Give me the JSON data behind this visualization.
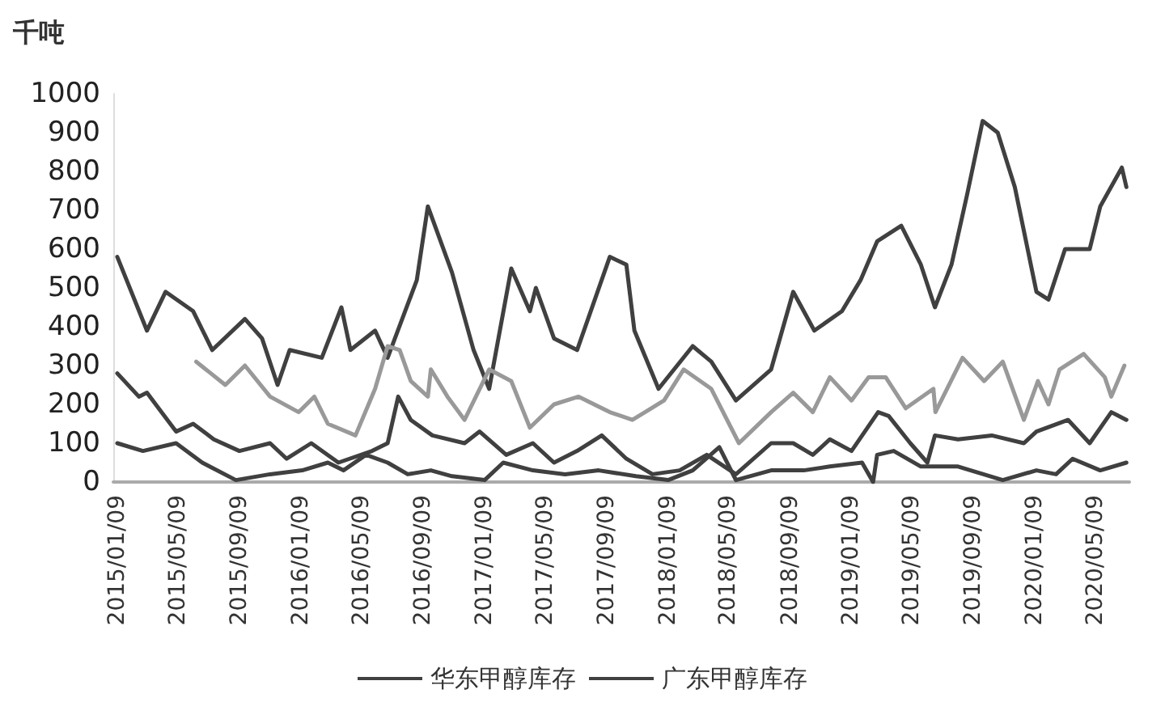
{
  "chart_data": {
    "type": "line",
    "ylabel": "千吨",
    "legend": "bottom",
    "grid": false,
    "marker": "none",
    "line_style": "solid",
    "xlim": [
      "2015-01-01",
      "2020-07-15"
    ],
    "ylim": [
      0,
      1000
    ],
    "yticks": [
      0,
      100,
      200,
      300,
      400,
      500,
      600,
      700,
      800,
      900,
      1000
    ],
    "xticks": [
      {
        "value": "2015-01-09",
        "label": "2015/01/09"
      },
      {
        "value": "2015-05-09",
        "label": "2015/05/09"
      },
      {
        "value": "2015-09-09",
        "label": "2015/09/09"
      },
      {
        "value": "2016-01-09",
        "label": "2016/01/09"
      },
      {
        "value": "2016-05-09",
        "label": "2016/05/09"
      },
      {
        "value": "2016-09-09",
        "label": "2016/09/09"
      },
      {
        "value": "2017-01-09",
        "label": "2017/01/09"
      },
      {
        "value": "2017-05-09",
        "label": "2017/05/09"
      },
      {
        "value": "2017-09-09",
        "label": "2017/09/09"
      },
      {
        "value": "2018-01-09",
        "label": "2018/01/09"
      },
      {
        "value": "2018-05-09",
        "label": "2018/05/09"
      },
      {
        "value": "2018-09-09",
        "label": "2018/09/09"
      },
      {
        "value": "2019-01-09",
        "label": "2019/01/09"
      },
      {
        "value": "2019-05-09",
        "label": "2019/05/09"
      },
      {
        "value": "2019-09-09",
        "label": "2019/09/09"
      },
      {
        "value": "2020-01-09",
        "label": "2020/01/09"
      },
      {
        "value": "2020-05-09",
        "label": "2020/05/09"
      }
    ],
    "series": [
      {
        "name": "华东甲醇库存",
        "color": "#404040",
        "x": [
          "2015-01-09",
          "2015-03-09",
          "2015-04-15",
          "2015-06-09",
          "2015-07-17",
          "2015-09-20",
          "2015-10-24",
          "2015-11-24",
          "2015-12-18",
          "2016-02-20",
          "2016-03-30",
          "2016-04-17",
          "2016-06-05",
          "2016-06-30",
          "2016-08-27",
          "2016-09-18",
          "2016-11-05",
          "2016-12-18",
          "2017-01-18",
          "2017-03-03",
          "2017-04-09",
          "2017-04-21",
          "2017-05-27",
          "2017-07-12",
          "2017-09-15",
          "2017-10-18",
          "2017-11-03",
          "2017-12-21",
          "2018-02-27",
          "2018-04-05",
          "2018-05-24",
          "2018-08-02",
          "2018-09-15",
          "2018-10-27",
          "2018-12-21",
          "2019-01-27",
          "2019-03-01",
          "2019-04-18",
          "2019-05-27",
          "2019-06-24",
          "2019-07-27",
          "2019-08-27",
          "2019-09-27",
          "2019-10-27",
          "2019-11-30",
          "2020-01-12",
          "2020-02-05",
          "2020-03-09",
          "2020-04-27",
          "2020-05-18",
          "2020-06-30",
          "2020-07-09"
        ],
        "values": [
          580,
          390,
          490,
          440,
          340,
          420,
          370,
          250,
          340,
          320,
          450,
          340,
          390,
          320,
          520,
          710,
          540,
          340,
          240,
          550,
          440,
          500,
          370,
          340,
          580,
          560,
          390,
          240,
          350,
          310,
          210,
          290,
          490,
          390,
          440,
          520,
          620,
          660,
          560,
          450,
          560,
          740,
          930,
          900,
          760,
          490,
          470,
          600,
          600,
          710,
          810,
          760
        ]
      },
      {
        "name": "广东甲醇库存",
        "color": "#404040",
        "x": [
          "2015-01-09",
          "2015-02-21",
          "2015-03-09",
          "2015-05-06",
          "2015-06-09",
          "2015-07-20",
          "2015-09-09",
          "2015-11-09",
          "2015-12-12",
          "2016-01-30",
          "2016-03-24",
          "2016-05-30",
          "2016-06-30",
          "2016-07-21",
          "2016-08-15",
          "2016-09-27",
          "2016-11-30",
          "2016-12-30",
          "2017-02-21",
          "2017-04-15",
          "2017-05-27",
          "2017-07-12",
          "2017-08-30",
          "2017-10-18",
          "2017-12-09",
          "2018-02-01",
          "2018-03-27",
          "2018-05-24",
          "2018-08-02",
          "2018-09-15",
          "2018-10-24",
          "2018-11-27",
          "2019-01-09",
          "2019-03-03",
          "2019-03-24",
          "2019-05-06",
          "2019-06-09",
          "2019-06-24",
          "2019-08-09",
          "2019-10-15",
          "2019-12-18",
          "2020-01-12",
          "2020-03-15",
          "2020-04-27",
          "2020-06-09",
          "2020-07-09"
        ],
        "values": [
          280,
          220,
          230,
          130,
          150,
          110,
          80,
          100,
          60,
          100,
          50,
          80,
          100,
          220,
          160,
          120,
          100,
          130,
          70,
          100,
          50,
          80,
          120,
          60,
          20,
          30,
          70,
          20,
          100,
          100,
          70,
          110,
          80,
          180,
          170,
          100,
          50,
          120,
          110,
          120,
          100,
          130,
          160,
          100,
          180,
          160
        ]
      },
      {
        "color": "#999999",
        "x": [
          "2015-06-15",
          "2015-08-12",
          "2015-09-20",
          "2015-11-09",
          "2016-01-05",
          "2016-02-05",
          "2016-03-03",
          "2016-04-27",
          "2016-06-05",
          "2016-06-30",
          "2016-07-24",
          "2016-08-15",
          "2016-09-18",
          "2016-09-24",
          "2016-10-27",
          "2016-11-30",
          "2017-01-18",
          "2017-03-03",
          "2017-04-09",
          "2017-05-27",
          "2017-07-15",
          "2017-09-15",
          "2017-10-30",
          "2018-01-01",
          "2018-02-09",
          "2018-04-05",
          "2018-05-30",
          "2018-08-02",
          "2018-09-15",
          "2018-10-24",
          "2018-11-27",
          "2019-01-09",
          "2019-02-12",
          "2019-03-18",
          "2019-04-27",
          "2019-06-21",
          "2019-06-25",
          "2019-08-18",
          "2019-09-30",
          "2019-11-06",
          "2019-12-18",
          "2020-01-15",
          "2020-02-05",
          "2020-02-27",
          "2020-04-15",
          "2020-05-27",
          "2020-06-09",
          "2020-07-05"
        ],
        "values": [
          310,
          250,
          300,
          220,
          180,
          220,
          150,
          120,
          240,
          350,
          340,
          260,
          220,
          290,
          220,
          160,
          290,
          260,
          140,
          200,
          220,
          180,
          160,
          210,
          290,
          240,
          100,
          180,
          230,
          180,
          270,
          210,
          270,
          270,
          190,
          240,
          180,
          320,
          260,
          310,
          160,
          260,
          200,
          290,
          330,
          270,
          220,
          300
        ]
      },
      {
        "color": "#404040",
        "x": [
          "2015-01-09",
          "2015-03-01",
          "2015-05-06",
          "2015-06-27",
          "2015-09-02",
          "2015-11-09",
          "2016-01-12",
          "2016-03-03",
          "2016-04-03",
          "2016-05-18",
          "2016-06-30",
          "2016-08-09",
          "2016-09-24",
          "2016-11-05",
          "2017-01-09",
          "2017-02-15",
          "2017-04-15",
          "2017-06-18",
          "2017-08-24",
          "2017-11-06",
          "2018-01-09",
          "2018-02-27",
          "2018-04-21",
          "2018-05-24",
          "2018-08-02",
          "2018-10-06",
          "2018-11-27",
          "2019-01-30",
          "2019-02-21",
          "2019-03-01",
          "2019-04-03",
          "2019-05-27",
          "2019-08-09",
          "2019-11-06",
          "2020-01-12",
          "2020-02-20",
          "2020-03-24",
          "2020-05-18",
          "2020-07-09"
        ],
        "values": [
          100,
          80,
          100,
          50,
          5,
          20,
          30,
          50,
          30,
          70,
          50,
          20,
          30,
          15,
          5,
          50,
          30,
          20,
          30,
          15,
          5,
          30,
          90,
          5,
          30,
          30,
          40,
          50,
          0,
          70,
          80,
          40,
          40,
          5,
          30,
          20,
          60,
          30,
          50
        ]
      }
    ]
  }
}
